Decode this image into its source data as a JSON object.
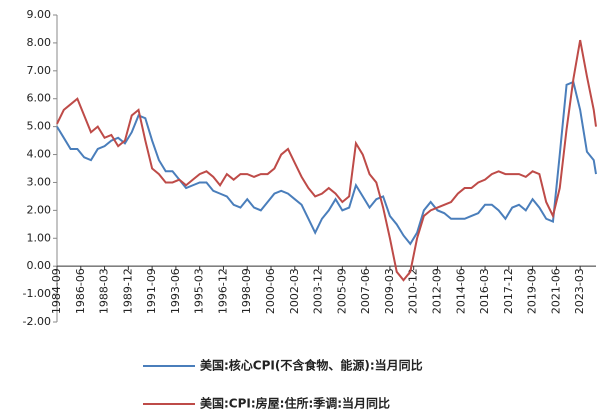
{
  "chart_data": {
    "type": "line",
    "x": [
      "1984-09",
      "1985-03",
      "1985-09",
      "1986-03",
      "1986-09",
      "1987-03",
      "1987-09",
      "1988-03",
      "1988-09",
      "1989-03",
      "1989-09",
      "1990-03",
      "1990-09",
      "1991-03",
      "1991-09",
      "1992-03",
      "1992-09",
      "1993-03",
      "1993-09",
      "1994-03",
      "1994-09",
      "1995-03",
      "1995-09",
      "1996-03",
      "1996-09",
      "1997-03",
      "1997-09",
      "1998-03",
      "1998-09",
      "1999-03",
      "1999-09",
      "2000-03",
      "2000-09",
      "2001-03",
      "2001-09",
      "2002-03",
      "2002-09",
      "2003-03",
      "2003-09",
      "2004-03",
      "2004-09",
      "2005-03",
      "2005-09",
      "2006-03",
      "2006-09",
      "2007-03",
      "2007-09",
      "2008-03",
      "2008-09",
      "2009-03",
      "2009-09",
      "2010-03",
      "2010-09",
      "2011-03",
      "2011-09",
      "2012-03",
      "2012-09",
      "2013-03",
      "2013-09",
      "2014-03",
      "2014-09",
      "2015-03",
      "2015-09",
      "2016-03",
      "2016-09",
      "2017-03",
      "2017-09",
      "2018-03",
      "2018-09",
      "2019-03",
      "2019-09",
      "2020-03",
      "2020-09",
      "2021-03",
      "2021-09",
      "2022-03",
      "2022-09",
      "2023-03",
      "2023-09",
      "2024-03",
      "2024-05"
    ],
    "series": [
      {
        "name": "美国:核心CPI(不含食物、能源):当月同比",
        "color": "#4a7ebb",
        "values": [
          5.0,
          4.6,
          4.2,
          4.2,
          3.9,
          3.8,
          4.2,
          4.3,
          4.5,
          4.6,
          4.4,
          4.8,
          5.4,
          5.3,
          4.5,
          3.8,
          3.4,
          3.4,
          3.1,
          2.8,
          2.9,
          3.0,
          3.0,
          2.7,
          2.6,
          2.5,
          2.2,
          2.1,
          2.4,
          2.1,
          2.0,
          2.3,
          2.6,
          2.7,
          2.6,
          2.4,
          2.2,
          1.7,
          1.2,
          1.7,
          2.0,
          2.4,
          2.0,
          2.1,
          2.9,
          2.5,
          2.1,
          2.4,
          2.5,
          1.8,
          1.5,
          1.1,
          0.8,
          1.2,
          2.0,
          2.3,
          2.0,
          1.9,
          1.7,
          1.7,
          1.7,
          1.8,
          1.9,
          2.2,
          2.2,
          2.0,
          1.7,
          2.1,
          2.2,
          2.0,
          2.4,
          2.1,
          1.7,
          1.6,
          4.0,
          6.5,
          6.6,
          5.6,
          4.1,
          3.8,
          3.3
        ]
      },
      {
        "name": "美国:CPI:房屋:住所:季调:当月同比",
        "color": "#be4b48",
        "values": [
          5.1,
          5.6,
          5.8,
          6.0,
          5.4,
          4.8,
          5.0,
          4.6,
          4.7,
          4.3,
          4.5,
          5.4,
          5.6,
          4.5,
          3.5,
          3.3,
          3.0,
          3.0,
          3.1,
          2.9,
          3.1,
          3.3,
          3.4,
          3.2,
          2.9,
          3.3,
          3.1,
          3.3,
          3.3,
          3.2,
          3.3,
          3.3,
          3.5,
          4.0,
          4.2,
          3.7,
          3.2,
          2.8,
          2.5,
          2.6,
          2.8,
          2.6,
          2.3,
          2.5,
          4.4,
          4.0,
          3.3,
          3.0,
          2.1,
          1.0,
          -0.2,
          -0.5,
          -0.2,
          1.0,
          1.8,
          2.0,
          2.1,
          2.2,
          2.3,
          2.6,
          2.8,
          2.8,
          3.0,
          3.1,
          3.3,
          3.4,
          3.3,
          3.3,
          3.3,
          3.2,
          3.4,
          3.3,
          2.3,
          1.8,
          2.8,
          4.9,
          6.7,
          8.1,
          6.8,
          5.6,
          5.0
        ]
      }
    ],
    "xticks": [
      "1984-09",
      "1986-06",
      "1988-03",
      "1989-12",
      "1991-09",
      "1993-06",
      "1995-03",
      "1996-12",
      "1998-09",
      "2000-06",
      "2002-03",
      "2003-12",
      "2005-09",
      "2007-06",
      "2009-03",
      "2010-12",
      "2012-09",
      "2014-06",
      "2016-03",
      "2017-12",
      "2019-09",
      "2021-06",
      "2023-03"
    ],
    "ylim": [
      -2,
      9
    ],
    "yticks": [
      {
        "value": -2,
        "label": "-2.00"
      },
      {
        "value": -1,
        "label": "-1.00"
      },
      {
        "value": 0,
        "label": "0.00"
      },
      {
        "value": 1,
        "label": "1.00"
      },
      {
        "value": 2,
        "label": "2.00"
      },
      {
        "value": 3,
        "label": "3.00"
      },
      {
        "value": 4,
        "label": "4.00"
      },
      {
        "value": 5,
        "label": "5.00"
      },
      {
        "value": 6,
        "label": "6.00"
      },
      {
        "value": 7,
        "label": "7.00"
      },
      {
        "value": 8,
        "label": "8.00"
      },
      {
        "value": 9,
        "label": "9.00"
      }
    ]
  }
}
